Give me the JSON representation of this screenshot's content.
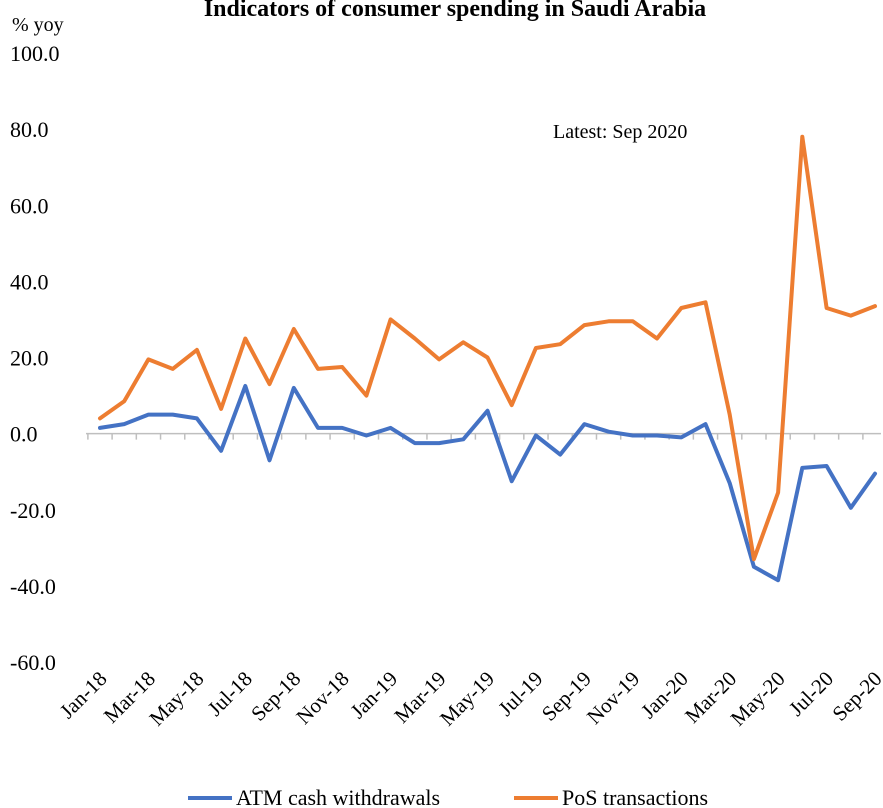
{
  "chart_data": {
    "type": "line",
    "title": "Indicators of consumer spending in Saudi Arabia",
    "ylabel": "% yoy",
    "ylim": [
      -60,
      100
    ],
    "yticks": [
      "100.0",
      "80.0",
      "60.0",
      "40.0",
      "20.0",
      "0.0",
      "-20.0",
      "-40.0",
      "-60.0"
    ],
    "ytick_values": [
      100,
      80,
      60,
      40,
      20,
      0,
      -20,
      -40,
      -60
    ],
    "x": [
      "Jan-18",
      "Feb-18",
      "Mar-18",
      "Apr-18",
      "May-18",
      "Jun-18",
      "Jul-18",
      "Aug-18",
      "Sep-18",
      "Oct-18",
      "Nov-18",
      "Dec-18",
      "Jan-19",
      "Feb-19",
      "Mar-19",
      "Apr-19",
      "May-19",
      "Jun-19",
      "Jul-19",
      "Aug-19",
      "Sep-19",
      "Oct-19",
      "Nov-19",
      "Dec-19",
      "Jan-20",
      "Feb-20",
      "Mar-20",
      "Apr-20",
      "May-20",
      "Jun-20",
      "Jul-20",
      "Aug-20",
      "Sep-20"
    ],
    "x_tick_labels": [
      "Jan-18",
      "Mar-18",
      "May-18",
      "Jul-18",
      "Sep-18",
      "Nov-18",
      "Jan-19",
      "Mar-19",
      "May-19",
      "Jul-19",
      "Sep-19",
      "Nov-19",
      "Jan-20",
      "Mar-20",
      "May-20",
      "Jul-20",
      "Sep-20"
    ],
    "annotation": "Latest: Sep 2020",
    "legend_position": "bottom",
    "grid": false,
    "series": [
      {
        "name": "ATM cash withdrawals",
        "color": "#4472C4",
        "values": [
          1.5,
          2.5,
          5,
          5,
          4,
          -4.5,
          12.5,
          -7,
          12,
          1.5,
          1.5,
          -0.5,
          1.5,
          -2.5,
          -2.5,
          -1.5,
          6,
          -12.5,
          -0.5,
          -5.5,
          2.5,
          0.5,
          -0.5,
          -0.5,
          -1,
          2.5,
          -13,
          -35,
          -38.5,
          -9,
          -8.5,
          -19.5,
          -10.5
        ]
      },
      {
        "name": "PoS transactions",
        "color": "#ED7D31",
        "values": [
          4,
          8.5,
          19.5,
          17,
          22,
          6.5,
          25,
          13,
          27.5,
          17,
          17.5,
          10,
          30,
          25,
          19.5,
          24,
          20,
          7.5,
          22.5,
          23.5,
          28.5,
          29.5,
          29.5,
          25,
          33,
          34.5,
          5,
          -33,
          -15.5,
          78,
          33,
          31,
          33.5
        ]
      }
    ]
  }
}
